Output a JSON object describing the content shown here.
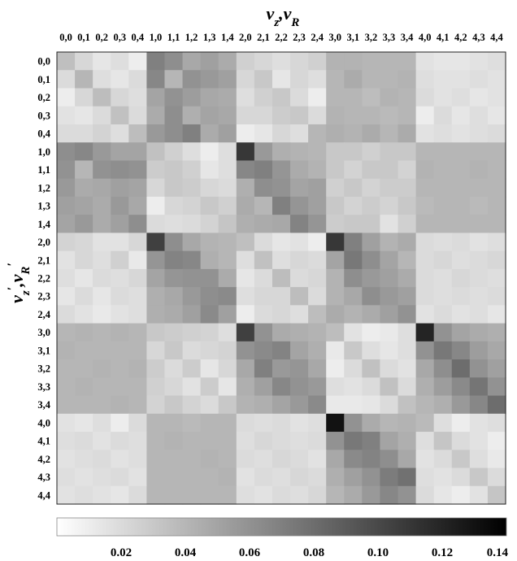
{
  "chart_data": {
    "type": "heatmap",
    "xlabel": "v_z,v_R",
    "ylabel": "v_z',v_R'",
    "labels": [
      "0,0",
      "0,1",
      "0,2",
      "0,3",
      "0,4",
      "1,0",
      "1,1",
      "1,2",
      "1,3",
      "1,4",
      "2,0",
      "2,1",
      "2,2",
      "2,3",
      "2,4",
      "3,0",
      "3,1",
      "3,2",
      "3,3",
      "3,4",
      "4,0",
      "4,1",
      "4,2",
      "4,3",
      "4,4"
    ],
    "colorbar": {
      "min": 0.0,
      "max": 0.14,
      "ticks": [
        "0.02",
        "0.04",
        "0.06",
        "0.08",
        "0.10",
        "0.12",
        "0.14"
      ],
      "tick_values": [
        0.02,
        0.04,
        0.06,
        0.08,
        0.1,
        0.12,
        0.14
      ],
      "colormap": "gray_r"
    },
    "values": [
      [
        0.035,
        0.022,
        0.014,
        0.018,
        0.01,
        0.07,
        0.062,
        0.048,
        0.052,
        0.046,
        0.026,
        0.022,
        0.018,
        0.022,
        0.026,
        0.042,
        0.042,
        0.04,
        0.04,
        0.04,
        0.016,
        0.014,
        0.014,
        0.016,
        0.018
      ],
      [
        0.02,
        0.04,
        0.018,
        0.014,
        0.02,
        0.066,
        0.04,
        0.06,
        0.056,
        0.052,
        0.022,
        0.03,
        0.014,
        0.022,
        0.018,
        0.04,
        0.046,
        0.04,
        0.04,
        0.042,
        0.018,
        0.016,
        0.016,
        0.018,
        0.016
      ],
      [
        0.01,
        0.022,
        0.036,
        0.022,
        0.018,
        0.05,
        0.06,
        0.054,
        0.048,
        0.046,
        0.018,
        0.026,
        0.03,
        0.02,
        0.01,
        0.04,
        0.04,
        0.036,
        0.042,
        0.04,
        0.02,
        0.016,
        0.018,
        0.014,
        0.016
      ],
      [
        0.016,
        0.014,
        0.02,
        0.034,
        0.02,
        0.046,
        0.062,
        0.044,
        0.05,
        0.048,
        0.022,
        0.022,
        0.028,
        0.03,
        0.02,
        0.042,
        0.04,
        0.04,
        0.038,
        0.04,
        0.01,
        0.02,
        0.014,
        0.018,
        0.014
      ],
      [
        0.02,
        0.02,
        0.024,
        0.018,
        0.036,
        0.056,
        0.062,
        0.07,
        0.046,
        0.052,
        0.01,
        0.014,
        0.022,
        0.018,
        0.04,
        0.044,
        0.042,
        0.046,
        0.04,
        0.046,
        0.016,
        0.018,
        0.016,
        0.018,
        0.02
      ],
      [
        0.062,
        0.066,
        0.056,
        0.05,
        0.05,
        0.034,
        0.026,
        0.018,
        0.01,
        0.018,
        0.11,
        0.056,
        0.044,
        0.042,
        0.04,
        0.03,
        0.03,
        0.026,
        0.03,
        0.03,
        0.04,
        0.04,
        0.04,
        0.04,
        0.04
      ],
      [
        0.06,
        0.04,
        0.06,
        0.062,
        0.06,
        0.028,
        0.03,
        0.026,
        0.014,
        0.018,
        0.066,
        0.07,
        0.058,
        0.046,
        0.042,
        0.03,
        0.024,
        0.03,
        0.03,
        0.024,
        0.042,
        0.04,
        0.04,
        0.042,
        0.04
      ],
      [
        0.056,
        0.046,
        0.048,
        0.052,
        0.05,
        0.022,
        0.03,
        0.028,
        0.022,
        0.02,
        0.044,
        0.062,
        0.06,
        0.05,
        0.052,
        0.026,
        0.03,
        0.024,
        0.028,
        0.028,
        0.04,
        0.04,
        0.04,
        0.04,
        0.04
      ],
      [
        0.052,
        0.05,
        0.046,
        0.056,
        0.048,
        0.01,
        0.022,
        0.024,
        0.03,
        0.026,
        0.046,
        0.04,
        0.07,
        0.058,
        0.052,
        0.03,
        0.024,
        0.028,
        0.024,
        0.03,
        0.038,
        0.04,
        0.04,
        0.038,
        0.04
      ],
      [
        0.05,
        0.056,
        0.046,
        0.052,
        0.062,
        0.02,
        0.018,
        0.02,
        0.024,
        0.032,
        0.044,
        0.046,
        0.048,
        0.068,
        0.058,
        0.028,
        0.03,
        0.03,
        0.016,
        0.026,
        0.04,
        0.04,
        0.04,
        0.04,
        0.04
      ],
      [
        0.024,
        0.022,
        0.016,
        0.016,
        0.022,
        0.105,
        0.062,
        0.048,
        0.042,
        0.04,
        0.035,
        0.02,
        0.014,
        0.016,
        0.01,
        0.11,
        0.07,
        0.052,
        0.042,
        0.046,
        0.02,
        0.018,
        0.02,
        0.016,
        0.018
      ],
      [
        0.016,
        0.022,
        0.018,
        0.026,
        0.012,
        0.058,
        0.068,
        0.066,
        0.044,
        0.04,
        0.018,
        0.034,
        0.018,
        0.022,
        0.02,
        0.05,
        0.074,
        0.062,
        0.05,
        0.04,
        0.02,
        0.022,
        0.018,
        0.02,
        0.022
      ],
      [
        0.018,
        0.014,
        0.02,
        0.018,
        0.022,
        0.05,
        0.058,
        0.06,
        0.06,
        0.046,
        0.014,
        0.02,
        0.036,
        0.02,
        0.022,
        0.042,
        0.062,
        0.056,
        0.052,
        0.046,
        0.02,
        0.018,
        0.022,
        0.02,
        0.018
      ],
      [
        0.014,
        0.02,
        0.014,
        0.02,
        0.018,
        0.044,
        0.048,
        0.056,
        0.062,
        0.064,
        0.018,
        0.022,
        0.022,
        0.036,
        0.02,
        0.042,
        0.048,
        0.062,
        0.056,
        0.052,
        0.02,
        0.018,
        0.02,
        0.018,
        0.02
      ],
      [
        0.02,
        0.016,
        0.012,
        0.016,
        0.018,
        0.044,
        0.046,
        0.052,
        0.064,
        0.052,
        0.01,
        0.02,
        0.022,
        0.018,
        0.036,
        0.046,
        0.042,
        0.046,
        0.052,
        0.06,
        0.016,
        0.02,
        0.016,
        0.018,
        0.014
      ],
      [
        0.04,
        0.042,
        0.04,
        0.042,
        0.04,
        0.03,
        0.028,
        0.026,
        0.024,
        0.018,
        0.105,
        0.06,
        0.046,
        0.044,
        0.042,
        0.036,
        0.016,
        0.01,
        0.012,
        0.018,
        0.12,
        0.06,
        0.05,
        0.046,
        0.044
      ],
      [
        0.042,
        0.04,
        0.04,
        0.04,
        0.04,
        0.022,
        0.03,
        0.02,
        0.022,
        0.024,
        0.06,
        0.064,
        0.068,
        0.05,
        0.044,
        0.012,
        0.03,
        0.018,
        0.014,
        0.018,
        0.06,
        0.074,
        0.066,
        0.054,
        0.048
      ],
      [
        0.04,
        0.04,
        0.042,
        0.04,
        0.042,
        0.028,
        0.02,
        0.028,
        0.014,
        0.022,
        0.048,
        0.07,
        0.056,
        0.058,
        0.048,
        0.01,
        0.02,
        0.034,
        0.02,
        0.016,
        0.048,
        0.062,
        0.08,
        0.06,
        0.052
      ],
      [
        0.04,
        0.042,
        0.04,
        0.04,
        0.04,
        0.026,
        0.022,
        0.016,
        0.028,
        0.014,
        0.044,
        0.052,
        0.066,
        0.06,
        0.056,
        0.018,
        0.016,
        0.02,
        0.034,
        0.02,
        0.044,
        0.054,
        0.064,
        0.076,
        0.06
      ],
      [
        0.04,
        0.04,
        0.04,
        0.042,
        0.04,
        0.024,
        0.03,
        0.024,
        0.02,
        0.03,
        0.042,
        0.044,
        0.05,
        0.056,
        0.064,
        0.012,
        0.012,
        0.014,
        0.02,
        0.034,
        0.04,
        0.044,
        0.056,
        0.066,
        0.08
      ],
      [
        0.016,
        0.014,
        0.018,
        0.01,
        0.02,
        0.04,
        0.04,
        0.038,
        0.04,
        0.04,
        0.02,
        0.018,
        0.02,
        0.016,
        0.018,
        0.13,
        0.06,
        0.046,
        0.04,
        0.042,
        0.038,
        0.018,
        0.01,
        0.016,
        0.018
      ],
      [
        0.018,
        0.02,
        0.016,
        0.02,
        0.018,
        0.04,
        0.042,
        0.04,
        0.04,
        0.04,
        0.018,
        0.022,
        0.02,
        0.018,
        0.02,
        0.06,
        0.074,
        0.07,
        0.05,
        0.044,
        0.018,
        0.032,
        0.02,
        0.016,
        0.01
      ],
      [
        0.016,
        0.018,
        0.02,
        0.016,
        0.018,
        0.04,
        0.04,
        0.04,
        0.042,
        0.04,
        0.02,
        0.018,
        0.022,
        0.02,
        0.016,
        0.048,
        0.064,
        0.068,
        0.062,
        0.048,
        0.016,
        0.02,
        0.03,
        0.018,
        0.012
      ],
      [
        0.018,
        0.016,
        0.018,
        0.02,
        0.016,
        0.04,
        0.04,
        0.04,
        0.04,
        0.042,
        0.016,
        0.02,
        0.018,
        0.022,
        0.02,
        0.044,
        0.052,
        0.06,
        0.072,
        0.078,
        0.018,
        0.016,
        0.02,
        0.03,
        0.02
      ],
      [
        0.016,
        0.018,
        0.016,
        0.014,
        0.02,
        0.04,
        0.04,
        0.04,
        0.04,
        0.04,
        0.018,
        0.016,
        0.02,
        0.018,
        0.022,
        0.04,
        0.046,
        0.056,
        0.066,
        0.06,
        0.02,
        0.014,
        0.01,
        0.016,
        0.032
      ]
    ]
  }
}
